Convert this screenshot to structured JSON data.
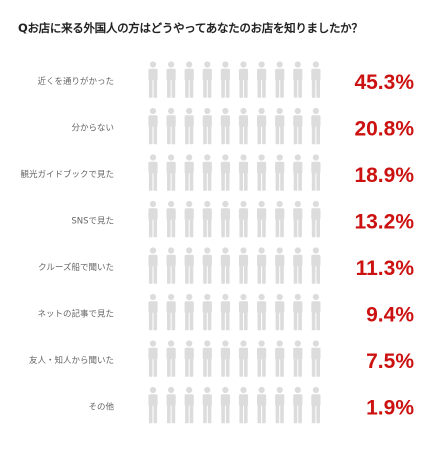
{
  "question": "Qお店に来る外国人の方はどうやってあなたのお店を知りましたか？",
  "colors": {
    "highlight": "#cc1111",
    "muted": "#dcdcdc",
    "label_text": "#666666",
    "question_text": "#222222"
  },
  "icon": "person-icon",
  "icons_per_row": 10,
  "chart_data": {
    "type": "bar",
    "title": "Qお店に来る外国人の方はどうやってあなたのお店を知りましたか？",
    "xlabel": "",
    "ylabel": "",
    "unit": "%",
    "ylim": [
      0,
      100
    ],
    "categories": [
      "近くを通りがかった",
      "分からない",
      "観光ガイドブックで見た",
      "SNSで見た",
      "クルーズ船で聞いた",
      "ネットの記事で見た",
      "友人・知人から聞いた",
      "その他"
    ],
    "values": [
      45.3,
      20.8,
      18.9,
      13.2,
      11.3,
      9.4,
      7.5,
      1.9
    ],
    "value_labels": [
      "45.3%",
      "20.8%",
      "18.9%",
      "13.2%",
      "11.3%",
      "9.4%",
      "7.5%",
      "1.9%"
    ],
    "grid": false,
    "legend": "none"
  }
}
